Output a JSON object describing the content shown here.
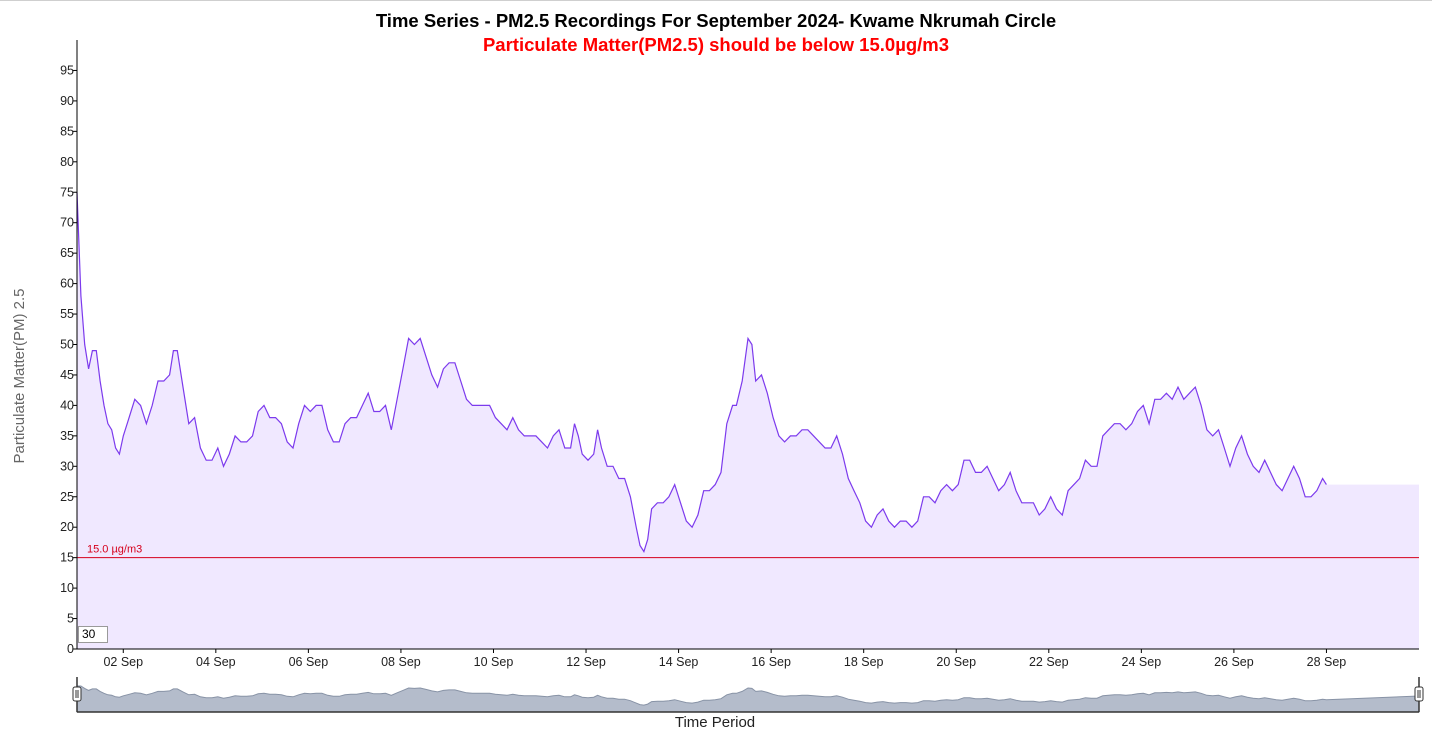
{
  "chart_data": {
    "type": "area",
    "title": "Time Series - PM2.5 Recordings For September 2024- Kwame Nkrumah Circle",
    "subtitle": "Particulate Matter(PM2.5) should be below 15.0µg/m3",
    "xlabel": "Time Period",
    "ylabel": "Particulate Matter(PM) 2.5",
    "ylim": [
      0,
      100
    ],
    "xlim": [
      "2024-09-01T00:00",
      "2024-09-30T00:00"
    ],
    "yticks": [
      "0",
      "5",
      "10",
      "15",
      "20",
      "25",
      "30",
      "35",
      "40",
      "45",
      "50",
      "55",
      "60",
      "65",
      "70",
      "75",
      "80",
      "85",
      "90",
      "95"
    ],
    "xticks": [
      {
        "date": "2024-09-02T00:00",
        "label": "02 Sep"
      },
      {
        "date": "2024-09-04T00:00",
        "label": "04 Sep"
      },
      {
        "date": "2024-09-06T00:00",
        "label": "06 Sep"
      },
      {
        "date": "2024-09-08T00:00",
        "label": "08 Sep"
      },
      {
        "date": "2024-09-10T00:00",
        "label": "10 Sep"
      },
      {
        "date": "2024-09-12T00:00",
        "label": "12 Sep"
      },
      {
        "date": "2024-09-14T00:00",
        "label": "14 Sep"
      },
      {
        "date": "2024-09-16T00:00",
        "label": "16 Sep"
      },
      {
        "date": "2024-09-18T00:00",
        "label": "18 Sep"
      },
      {
        "date": "2024-09-20T00:00",
        "label": "20 Sep"
      },
      {
        "date": "2024-09-22T00:00",
        "label": "22 Sep"
      },
      {
        "date": "2024-09-24T00:00",
        "label": "24 Sep"
      },
      {
        "date": "2024-09-26T00:00",
        "label": "26 Sep"
      },
      {
        "date": "2024-09-28T00:00",
        "label": "28 Sep"
      }
    ],
    "threshold": {
      "value": 15,
      "label": "15.0 µg/m3",
      "color": "#d6001c"
    },
    "line_color": "#7c3aed",
    "fill_color": "#f0e8ff",
    "smoothing_window": "30",
    "grid": false,
    "series": [
      {
        "name": "",
        "points": [
          [
            "2024-09-01T00:00",
            75
          ],
          [
            "2024-09-01T02:00",
            58
          ],
          [
            "2024-09-01T04:00",
            50
          ],
          [
            "2024-09-01T06:00",
            46
          ],
          [
            "2024-09-01T08:00",
            49
          ],
          [
            "2024-09-01T10:00",
            49
          ],
          [
            "2024-09-01T12:00",
            44
          ],
          [
            "2024-09-01T14:00",
            40
          ],
          [
            "2024-09-01T16:00",
            37
          ],
          [
            "2024-09-01T18:00",
            36
          ],
          [
            "2024-09-01T20:00",
            33
          ],
          [
            "2024-09-01T22:00",
            32
          ],
          [
            "2024-09-02T00:00",
            35
          ],
          [
            "2024-09-02T03:00",
            38
          ],
          [
            "2024-09-02T06:00",
            41
          ],
          [
            "2024-09-02T09:00",
            40
          ],
          [
            "2024-09-02T12:00",
            37
          ],
          [
            "2024-09-02T15:00",
            40
          ],
          [
            "2024-09-02T18:00",
            44
          ],
          [
            "2024-09-02T21:00",
            44
          ],
          [
            "2024-09-03T00:00",
            45
          ],
          [
            "2024-09-03T02:00",
            49
          ],
          [
            "2024-09-03T04:00",
            49
          ],
          [
            "2024-09-03T07:00",
            43
          ],
          [
            "2024-09-03T10:00",
            37
          ],
          [
            "2024-09-03T13:00",
            38
          ],
          [
            "2024-09-03T16:00",
            33
          ],
          [
            "2024-09-03T19:00",
            31
          ],
          [
            "2024-09-03T22:00",
            31
          ],
          [
            "2024-09-04T01:00",
            33
          ],
          [
            "2024-09-04T04:00",
            30
          ],
          [
            "2024-09-04T07:00",
            32
          ],
          [
            "2024-09-04T10:00",
            35
          ],
          [
            "2024-09-04T13:00",
            34
          ],
          [
            "2024-09-04T16:00",
            34
          ],
          [
            "2024-09-04T19:00",
            35
          ],
          [
            "2024-09-04T22:00",
            39
          ],
          [
            "2024-09-05T01:00",
            40
          ],
          [
            "2024-09-05T04:00",
            38
          ],
          [
            "2024-09-05T07:00",
            38
          ],
          [
            "2024-09-05T10:00",
            37
          ],
          [
            "2024-09-05T13:00",
            34
          ],
          [
            "2024-09-05T16:00",
            33
          ],
          [
            "2024-09-05T19:00",
            37
          ],
          [
            "2024-09-05T22:00",
            40
          ],
          [
            "2024-09-06T01:00",
            39
          ],
          [
            "2024-09-06T04:00",
            40
          ],
          [
            "2024-09-06T07:00",
            40
          ],
          [
            "2024-09-06T10:00",
            36
          ],
          [
            "2024-09-06T13:00",
            34
          ],
          [
            "2024-09-06T16:00",
            34
          ],
          [
            "2024-09-06T19:00",
            37
          ],
          [
            "2024-09-06T22:00",
            38
          ],
          [
            "2024-09-07T01:00",
            38
          ],
          [
            "2024-09-07T04:00",
            40
          ],
          [
            "2024-09-07T07:00",
            42
          ],
          [
            "2024-09-07T10:00",
            39
          ],
          [
            "2024-09-07T13:00",
            39
          ],
          [
            "2024-09-07T16:00",
            40
          ],
          [
            "2024-09-07T19:00",
            36
          ],
          [
            "2024-09-07T22:00",
            41
          ],
          [
            "2024-09-08T01:00",
            46
          ],
          [
            "2024-09-08T04:00",
            51
          ],
          [
            "2024-09-08T07:00",
            50
          ],
          [
            "2024-09-08T10:00",
            51
          ],
          [
            "2024-09-08T13:00",
            48
          ],
          [
            "2024-09-08T16:00",
            45
          ],
          [
            "2024-09-08T19:00",
            43
          ],
          [
            "2024-09-08T22:00",
            46
          ],
          [
            "2024-09-09T01:00",
            47
          ],
          [
            "2024-09-09T04:00",
            47
          ],
          [
            "2024-09-09T07:00",
            44
          ],
          [
            "2024-09-09T10:00",
            41
          ],
          [
            "2024-09-09T13:00",
            40
          ],
          [
            "2024-09-09T16:00",
            40
          ],
          [
            "2024-09-09T19:00",
            40
          ],
          [
            "2024-09-09T22:00",
            40
          ],
          [
            "2024-09-10T01:00",
            38
          ],
          [
            "2024-09-10T04:00",
            37
          ],
          [
            "2024-09-10T07:00",
            36
          ],
          [
            "2024-09-10T10:00",
            38
          ],
          [
            "2024-09-10T13:00",
            36
          ],
          [
            "2024-09-10T16:00",
            35
          ],
          [
            "2024-09-10T19:00",
            35
          ],
          [
            "2024-09-10T22:00",
            35
          ],
          [
            "2024-09-11T01:00",
            34
          ],
          [
            "2024-09-11T04:00",
            33
          ],
          [
            "2024-09-11T07:00",
            35
          ],
          [
            "2024-09-11T10:00",
            36
          ],
          [
            "2024-09-11T13:00",
            33
          ],
          [
            "2024-09-11T16:00",
            33
          ],
          [
            "2024-09-11T18:00",
            37
          ],
          [
            "2024-09-11T20:00",
            35
          ],
          [
            "2024-09-11T22:00",
            32
          ],
          [
            "2024-09-12T01:00",
            31
          ],
          [
            "2024-09-12T04:00",
            32
          ],
          [
            "2024-09-12T06:00",
            36
          ],
          [
            "2024-09-12T08:00",
            33
          ],
          [
            "2024-09-12T11:00",
            30
          ],
          [
            "2024-09-12T14:00",
            30
          ],
          [
            "2024-09-12T17:00",
            28
          ],
          [
            "2024-09-12T20:00",
            28
          ],
          [
            "2024-09-12T23:00",
            25
          ],
          [
            "2024-09-13T02:00",
            20
          ],
          [
            "2024-09-13T04:00",
            17
          ],
          [
            "2024-09-13T06:00",
            16
          ],
          [
            "2024-09-13T08:00",
            18
          ],
          [
            "2024-09-13T10:00",
            23
          ],
          [
            "2024-09-13T13:00",
            24
          ],
          [
            "2024-09-13T16:00",
            24
          ],
          [
            "2024-09-13T19:00",
            25
          ],
          [
            "2024-09-13T22:00",
            27
          ],
          [
            "2024-09-14T01:00",
            24
          ],
          [
            "2024-09-14T04:00",
            21
          ],
          [
            "2024-09-14T07:00",
            20
          ],
          [
            "2024-09-14T10:00",
            22
          ],
          [
            "2024-09-14T13:00",
            26
          ],
          [
            "2024-09-14T16:00",
            26
          ],
          [
            "2024-09-14T19:00",
            27
          ],
          [
            "2024-09-14T22:00",
            29
          ],
          [
            "2024-09-15T01:00",
            37
          ],
          [
            "2024-09-15T04:00",
            40
          ],
          [
            "2024-09-15T06:00",
            40
          ],
          [
            "2024-09-15T09:00",
            44
          ],
          [
            "2024-09-15T12:00",
            51
          ],
          [
            "2024-09-15T14:00",
            50
          ],
          [
            "2024-09-15T16:00",
            44
          ],
          [
            "2024-09-15T19:00",
            45
          ],
          [
            "2024-09-15T22:00",
            42
          ],
          [
            "2024-09-16T01:00",
            38
          ],
          [
            "2024-09-16T04:00",
            35
          ],
          [
            "2024-09-16T07:00",
            34
          ],
          [
            "2024-09-16T10:00",
            35
          ],
          [
            "2024-09-16T13:00",
            35
          ],
          [
            "2024-09-16T16:00",
            36
          ],
          [
            "2024-09-16T19:00",
            36
          ],
          [
            "2024-09-16T22:00",
            35
          ],
          [
            "2024-09-17T01:00",
            34
          ],
          [
            "2024-09-17T04:00",
            33
          ],
          [
            "2024-09-17T07:00",
            33
          ],
          [
            "2024-09-17T10:00",
            35
          ],
          [
            "2024-09-17T13:00",
            32
          ],
          [
            "2024-09-17T16:00",
            28
          ],
          [
            "2024-09-17T19:00",
            26
          ],
          [
            "2024-09-17T22:00",
            24
          ],
          [
            "2024-09-18T01:00",
            21
          ],
          [
            "2024-09-18T04:00",
            20
          ],
          [
            "2024-09-18T07:00",
            22
          ],
          [
            "2024-09-18T10:00",
            23
          ],
          [
            "2024-09-18T13:00",
            21
          ],
          [
            "2024-09-18T16:00",
            20
          ],
          [
            "2024-09-18T19:00",
            21
          ],
          [
            "2024-09-18T22:00",
            21
          ],
          [
            "2024-09-19T01:00",
            20
          ],
          [
            "2024-09-19T04:00",
            21
          ],
          [
            "2024-09-19T07:00",
            25
          ],
          [
            "2024-09-19T10:00",
            25
          ],
          [
            "2024-09-19T13:00",
            24
          ],
          [
            "2024-09-19T16:00",
            26
          ],
          [
            "2024-09-19T19:00",
            27
          ],
          [
            "2024-09-19T22:00",
            26
          ],
          [
            "2024-09-20T01:00",
            27
          ],
          [
            "2024-09-20T04:00",
            31
          ],
          [
            "2024-09-20T07:00",
            31
          ],
          [
            "2024-09-20T10:00",
            29
          ],
          [
            "2024-09-20T13:00",
            29
          ],
          [
            "2024-09-20T16:00",
            30
          ],
          [
            "2024-09-20T19:00",
            28
          ],
          [
            "2024-09-20T22:00",
            26
          ],
          [
            "2024-09-21T01:00",
            27
          ],
          [
            "2024-09-21T04:00",
            29
          ],
          [
            "2024-09-21T07:00",
            26
          ],
          [
            "2024-09-21T10:00",
            24
          ],
          [
            "2024-09-21T13:00",
            24
          ],
          [
            "2024-09-21T16:00",
            24
          ],
          [
            "2024-09-21T19:00",
            22
          ],
          [
            "2024-09-21T22:00",
            23
          ],
          [
            "2024-09-22T01:00",
            25
          ],
          [
            "2024-09-22T04:00",
            23
          ],
          [
            "2024-09-22T07:00",
            22
          ],
          [
            "2024-09-22T10:00",
            26
          ],
          [
            "2024-09-22T13:00",
            27
          ],
          [
            "2024-09-22T16:00",
            28
          ],
          [
            "2024-09-22T19:00",
            31
          ],
          [
            "2024-09-22T22:00",
            30
          ],
          [
            "2024-09-23T01:00",
            30
          ],
          [
            "2024-09-23T04:00",
            35
          ],
          [
            "2024-09-23T07:00",
            36
          ],
          [
            "2024-09-23T10:00",
            37
          ],
          [
            "2024-09-23T13:00",
            37
          ],
          [
            "2024-09-23T16:00",
            36
          ],
          [
            "2024-09-23T19:00",
            37
          ],
          [
            "2024-09-23T22:00",
            39
          ],
          [
            "2024-09-24T01:00",
            40
          ],
          [
            "2024-09-24T04:00",
            37
          ],
          [
            "2024-09-24T07:00",
            41
          ],
          [
            "2024-09-24T10:00",
            41
          ],
          [
            "2024-09-24T13:00",
            42
          ],
          [
            "2024-09-24T16:00",
            41
          ],
          [
            "2024-09-24T19:00",
            43
          ],
          [
            "2024-09-24T22:00",
            41
          ],
          [
            "2024-09-25T01:00",
            42
          ],
          [
            "2024-09-25T04:00",
            43
          ],
          [
            "2024-09-25T07:00",
            40
          ],
          [
            "2024-09-25T10:00",
            36
          ],
          [
            "2024-09-25T13:00",
            35
          ],
          [
            "2024-09-25T16:00",
            36
          ],
          [
            "2024-09-25T19:00",
            33
          ],
          [
            "2024-09-25T22:00",
            30
          ],
          [
            "2024-09-26T01:00",
            33
          ],
          [
            "2024-09-26T04:00",
            35
          ],
          [
            "2024-09-26T07:00",
            32
          ],
          [
            "2024-09-26T10:00",
            30
          ],
          [
            "2024-09-26T13:00",
            29
          ],
          [
            "2024-09-26T16:00",
            31
          ],
          [
            "2024-09-26T19:00",
            29
          ],
          [
            "2024-09-26T22:00",
            27
          ],
          [
            "2024-09-27T01:00",
            26
          ],
          [
            "2024-09-27T04:00",
            28
          ],
          [
            "2024-09-27T07:00",
            30
          ],
          [
            "2024-09-27T10:00",
            28
          ],
          [
            "2024-09-27T13:00",
            25
          ],
          [
            "2024-09-27T16:00",
            25
          ],
          [
            "2024-09-27T19:00",
            26
          ],
          [
            "2024-09-27T22:00",
            28
          ],
          [
            "2024-09-28T00:00",
            27
          ]
        ]
      }
    ]
  }
}
